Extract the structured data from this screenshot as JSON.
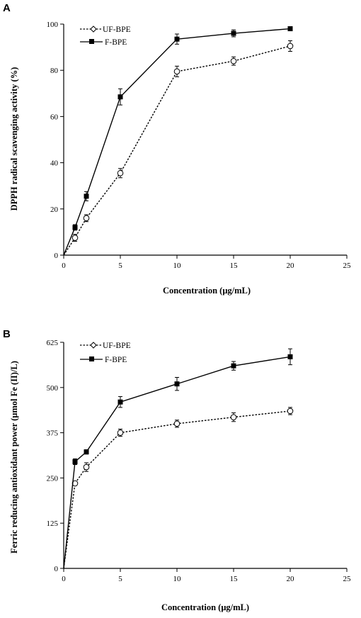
{
  "chart_data": [
    {
      "panel": "A",
      "type": "line",
      "xlabel": "Concentration (μg/mL)",
      "ylabel": "DPPH radical scavenging activity (%)",
      "xlim": [
        0,
        25
      ],
      "ylim": [
        0,
        100
      ],
      "xticks": [
        0,
        5,
        10,
        15,
        20,
        25
      ],
      "yticks": [
        0,
        20,
        40,
        60,
        80,
        100
      ],
      "grid": false,
      "legend_position": "top-left",
      "x": [
        0,
        1,
        2,
        5,
        10,
        15,
        20
      ],
      "series": [
        {
          "name": "UF-BPE",
          "style": "dashed",
          "marker": "open-circle",
          "values": [
            0,
            7.5,
            16,
            35.5,
            79.5,
            84,
            90.5
          ],
          "errors": [
            0,
            1.5,
            1.5,
            2,
            2.3,
            1.8,
            2.3
          ]
        },
        {
          "name": "F-BPE",
          "style": "solid",
          "marker": "filled-square",
          "values": [
            0,
            12,
            25.5,
            68.5,
            93.5,
            96,
            98
          ],
          "errors": [
            0,
            1.2,
            2,
            3.5,
            2.2,
            1.5,
            0.8
          ]
        }
      ]
    },
    {
      "panel": "B",
      "type": "line",
      "xlabel": "Concentration (μg/mL)",
      "ylabel": "Ferric reducing antioxidant power (μmol Fe (II)/L)",
      "xlim": [
        0,
        25
      ],
      "ylim": [
        0,
        625
      ],
      "xticks": [
        0,
        5,
        10,
        15,
        20,
        25
      ],
      "yticks": [
        0,
        125,
        250,
        375,
        500,
        625
      ],
      "grid": false,
      "legend_position": "top-left",
      "x": [
        0,
        1,
        2,
        5,
        10,
        15,
        20
      ],
      "series": [
        {
          "name": "UF-BPE",
          "style": "dashed",
          "marker": "open-circle",
          "values": [
            0,
            235,
            280,
            375,
            400,
            418,
            435
          ],
          "errors": [
            0,
            5,
            12,
            10,
            10,
            12,
            10
          ]
        },
        {
          "name": "F-BPE",
          "style": "solid",
          "marker": "filled-square",
          "values": [
            0,
            295,
            322,
            460,
            510,
            560,
            585
          ],
          "errors": [
            0,
            8,
            6,
            15,
            18,
            12,
            22
          ]
        }
      ]
    }
  ]
}
